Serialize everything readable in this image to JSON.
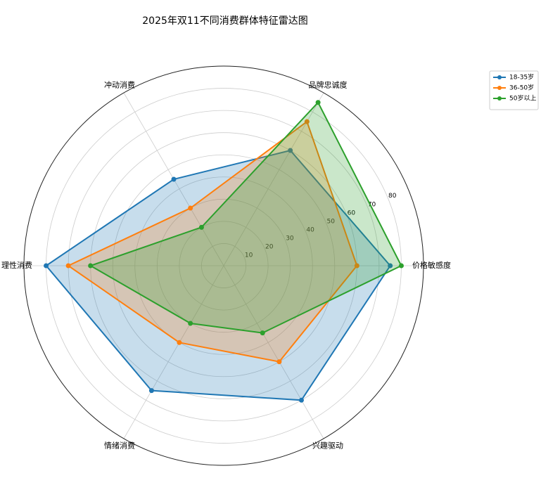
{
  "chart_data": {
    "type": "radar",
    "title": "2025年双11不同消费群体特征雷达图",
    "categories": [
      "价格敏感度",
      "品牌忠诚度",
      "冲动消费",
      "理性消费",
      "情绪消费",
      "兴趣驱动"
    ],
    "series": [
      {
        "name": "18-35岁",
        "color": "#1f77b4",
        "values": [
          75,
          60,
          45,
          80,
          65,
          70
        ]
      },
      {
        "name": "36-50岁",
        "color": "#ff7f0e",
        "values": [
          60,
          75,
          30,
          70,
          40,
          50
        ]
      },
      {
        "name": "50岁以上",
        "color": "#2ca02c",
        "values": [
          80,
          85,
          20,
          60,
          30,
          35
        ]
      }
    ],
    "ylim": [
      0,
      90
    ],
    "yticks": [
      10,
      20,
      30,
      40,
      50,
      60,
      70,
      80
    ],
    "grid": true,
    "legend": "upper right"
  }
}
